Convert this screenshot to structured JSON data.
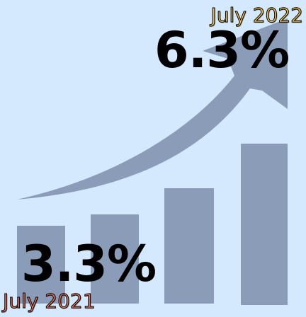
{
  "colors": {
    "background": "#d4e9fd",
    "bar": "#8a9cb8",
    "arrow": "#8a9cb8",
    "top_date": "#f3c145",
    "bottom_date": "#e26f57"
  },
  "top": {
    "date": "July 2022",
    "value": "6.3%"
  },
  "bottom": {
    "date": "July 2021",
    "value": "3.3%"
  }
}
